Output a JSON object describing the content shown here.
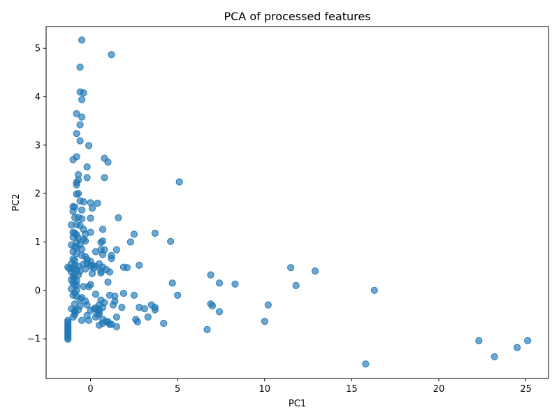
{
  "chart_data": {
    "type": "scatter",
    "title": "PCA of processed features",
    "xlabel": "PC1",
    "ylabel": "PC2",
    "xlim": [
      -2.55,
      26.3
    ],
    "ylim": [
      -1.82,
      5.45
    ],
    "xticks": [
      0,
      5,
      10,
      15,
      20,
      25
    ],
    "yticks": [
      -1,
      0,
      1,
      2,
      3,
      4,
      5
    ],
    "grid": false,
    "legend": "none",
    "colors": {
      "marker_fill": "#1f77b4",
      "marker_opacity": 0.65,
      "axes": "#000000",
      "background": "#ffffff"
    },
    "series": [
      {
        "points": [
          [
            -1.3,
            -0.62
          ],
          [
            -1.3,
            -0.66
          ],
          [
            -1.3,
            -0.7
          ],
          [
            -1.3,
            -0.74
          ],
          [
            -1.3,
            -0.78
          ],
          [
            -1.3,
            -0.82
          ],
          [
            -1.3,
            -0.86
          ],
          [
            -1.3,
            -0.9
          ],
          [
            -1.3,
            -0.94
          ],
          [
            -1.3,
            -0.98
          ],
          [
            -1.3,
            -1.01
          ],
          [
            -1.0,
            -0.55
          ],
          [
            -0.9,
            -0.5
          ],
          [
            -0.9,
            -0.45
          ],
          [
            -0.5,
            -0.62
          ],
          [
            -0.1,
            -0.62
          ],
          [
            0.2,
            -0.38
          ],
          [
            0.4,
            -0.5
          ],
          [
            0.5,
            -0.72
          ],
          [
            0.7,
            -0.68
          ],
          [
            0.9,
            -0.64
          ],
          [
            1.1,
            -0.7
          ],
          [
            1.5,
            -0.75
          ],
          [
            -0.5,
            5.17
          ],
          [
            1.2,
            4.87
          ],
          [
            -0.6,
            4.61
          ],
          [
            -0.6,
            4.1
          ],
          [
            -0.4,
            4.08
          ],
          [
            -0.5,
            3.94
          ],
          [
            -0.8,
            3.65
          ],
          [
            -0.5,
            3.58
          ],
          [
            -0.6,
            3.42
          ],
          [
            -0.8,
            3.24
          ],
          [
            -0.6,
            3.09
          ],
          [
            -0.1,
            2.99
          ],
          [
            -0.8,
            2.76
          ],
          [
            -1.0,
            2.7
          ],
          [
            0.8,
            2.73
          ],
          [
            1.0,
            2.65
          ],
          [
            -0.2,
            2.55
          ],
          [
            -0.7,
            2.39
          ],
          [
            -0.2,
            2.33
          ],
          [
            0.8,
            2.33
          ],
          [
            -0.7,
            2.28
          ],
          [
            -0.8,
            2.23
          ],
          [
            -0.8,
            2.18
          ],
          [
            5.1,
            2.24
          ],
          [
            -0.8,
            1.99
          ],
          [
            -0.7,
            2.0
          ],
          [
            -0.6,
            1.85
          ],
          [
            -0.4,
            1.83
          ],
          [
            0.0,
            1.81
          ],
          [
            0.4,
            1.8
          ],
          [
            -1.0,
            1.73
          ],
          [
            -0.9,
            1.72
          ],
          [
            0.1,
            1.7
          ],
          [
            -0.5,
            1.66
          ],
          [
            -1.0,
            1.63
          ],
          [
            -0.9,
            1.5
          ],
          [
            -0.7,
            1.51
          ],
          [
            -0.5,
            1.48
          ],
          [
            0.0,
            1.49
          ],
          [
            1.6,
            1.5
          ],
          [
            -1.1,
            1.35
          ],
          [
            -0.8,
            1.36
          ],
          [
            -0.6,
            1.34
          ],
          [
            -0.4,
            1.26
          ],
          [
            0.0,
            1.2
          ],
          [
            0.7,
            1.26
          ],
          [
            -1.0,
            1.2
          ],
          [
            -0.9,
            1.18
          ],
          [
            -0.8,
            1.15
          ],
          [
            -0.3,
            1.16
          ],
          [
            2.5,
            1.16
          ],
          [
            3.7,
            1.18
          ],
          [
            -1.0,
            1.1
          ],
          [
            -0.7,
            1.08
          ],
          [
            -0.4,
            1.05
          ],
          [
            -0.3,
            1.02
          ],
          [
            0.7,
            1.02
          ],
          [
            2.3,
            1.0
          ],
          [
            4.6,
            1.01
          ],
          [
            -0.8,
            1.0
          ],
          [
            -0.6,
            0.95
          ],
          [
            -1.1,
            0.94
          ],
          [
            0.6,
            0.99
          ],
          [
            -0.9,
            0.9
          ],
          [
            -0.8,
            0.88
          ],
          [
            -0.5,
            0.85
          ],
          [
            0.3,
            0.8
          ],
          [
            0.6,
            0.84
          ],
          [
            0.8,
            0.84
          ],
          [
            1.5,
            0.84
          ],
          [
            -1.0,
            0.8
          ],
          [
            -0.8,
            0.76
          ],
          [
            -0.5,
            0.72
          ],
          [
            -0.3,
            0.7
          ],
          [
            -0.2,
            0.64
          ],
          [
            0.0,
            0.6
          ],
          [
            0.7,
            0.74
          ],
          [
            1.2,
            0.72
          ],
          [
            1.2,
            0.66
          ],
          [
            -1.0,
            0.65
          ],
          [
            -0.9,
            0.62
          ],
          [
            -1.1,
            0.55
          ],
          [
            -0.9,
            0.52
          ],
          [
            -0.7,
            0.5
          ],
          [
            -0.4,
            0.54
          ],
          [
            -0.2,
            0.56
          ],
          [
            0.1,
            0.52
          ],
          [
            0.3,
            0.5
          ],
          [
            0.5,
            0.55
          ],
          [
            0.7,
            0.48
          ],
          [
            -1.3,
            0.48
          ],
          [
            -1.2,
            0.45
          ],
          [
            -1.0,
            0.45
          ],
          [
            -0.8,
            0.42
          ],
          [
            -0.6,
            0.4
          ],
          [
            -0.3,
            0.44
          ],
          [
            0.0,
            0.5
          ],
          [
            0.2,
            0.46
          ],
          [
            0.6,
            0.4
          ],
          [
            0.9,
            0.43
          ],
          [
            1.1,
            0.38
          ],
          [
            1.9,
            0.48
          ],
          [
            2.1,
            0.47
          ],
          [
            2.8,
            0.52
          ],
          [
            -1.1,
            0.38
          ],
          [
            -0.9,
            0.35
          ],
          [
            -0.7,
            0.32
          ],
          [
            0.1,
            0.35
          ],
          [
            0.6,
            0.36
          ],
          [
            -1.0,
            0.28
          ],
          [
            -0.9,
            0.24
          ],
          [
            -1.1,
            0.22
          ],
          [
            -0.8,
            0.2
          ],
          [
            -1.0,
            0.15
          ],
          [
            -0.9,
            0.12
          ],
          [
            -0.8,
            0.1
          ],
          [
            -0.4,
            0.08
          ],
          [
            -0.1,
            0.08
          ],
          [
            0.0,
            0.12
          ],
          [
            1.0,
            0.17
          ],
          [
            -1.1,
            0.03
          ],
          [
            -0.8,
            0.0
          ],
          [
            -0.9,
            -0.05
          ],
          [
            -1.0,
            -0.1
          ],
          [
            -0.8,
            -0.12
          ],
          [
            0.3,
            -0.08
          ],
          [
            1.1,
            -0.1
          ],
          [
            1.4,
            -0.12
          ],
          [
            1.9,
            -0.06
          ],
          [
            2.5,
            -0.1
          ],
          [
            5.0,
            -0.1
          ],
          [
            4.7,
            0.15
          ],
          [
            -0.5,
            -0.15
          ],
          [
            -0.6,
            -0.18
          ],
          [
            -0.3,
            -0.22
          ],
          [
            0.6,
            -0.2
          ],
          [
            0.8,
            -0.25
          ],
          [
            1.4,
            -0.22
          ],
          [
            -0.9,
            -0.28
          ],
          [
            -0.6,
            -0.32
          ],
          [
            -0.2,
            -0.3
          ],
          [
            0.5,
            -0.3
          ],
          [
            0.7,
            -0.35
          ],
          [
            1.3,
            -0.3
          ],
          [
            1.8,
            -0.35
          ],
          [
            2.8,
            -0.35
          ],
          [
            3.1,
            -0.38
          ],
          [
            3.5,
            -0.3
          ],
          [
            3.7,
            -0.35
          ],
          [
            3.7,
            -0.4
          ],
          [
            -1.1,
            -0.38
          ],
          [
            -0.9,
            -0.42
          ],
          [
            -0.7,
            -0.4
          ],
          [
            0.0,
            -0.42
          ],
          [
            0.3,
            -0.36
          ],
          [
            0.4,
            -0.4
          ],
          [
            0.5,
            -0.42
          ],
          [
            0.5,
            -0.48
          ],
          [
            -0.2,
            -0.52
          ],
          [
            0.3,
            -0.55
          ],
          [
            1.5,
            -0.55
          ],
          [
            0.7,
            -0.6
          ],
          [
            2.6,
            -0.6
          ],
          [
            3.3,
            -0.55
          ],
          [
            2.7,
            -0.65
          ],
          [
            4.2,
            -0.68
          ],
          [
            1.0,
            -0.65
          ],
          [
            1.2,
            -0.7
          ],
          [
            6.9,
            0.32
          ],
          [
            7.4,
            0.15
          ],
          [
            8.3,
            0.13
          ],
          [
            6.9,
            -0.28
          ],
          [
            7.0,
            -0.32
          ],
          [
            7.4,
            -0.44
          ],
          [
            6.7,
            -0.81
          ],
          [
            10.0,
            -0.64
          ],
          [
            10.2,
            -0.3
          ],
          [
            11.5,
            0.47
          ],
          [
            11.8,
            0.1
          ],
          [
            12.9,
            0.4
          ],
          [
            16.3,
            0.0
          ],
          [
            15.8,
            -1.52
          ],
          [
            22.3,
            -1.04
          ],
          [
            23.2,
            -1.37
          ],
          [
            24.5,
            -1.18
          ],
          [
            25.1,
            -1.04
          ]
        ]
      }
    ]
  }
}
